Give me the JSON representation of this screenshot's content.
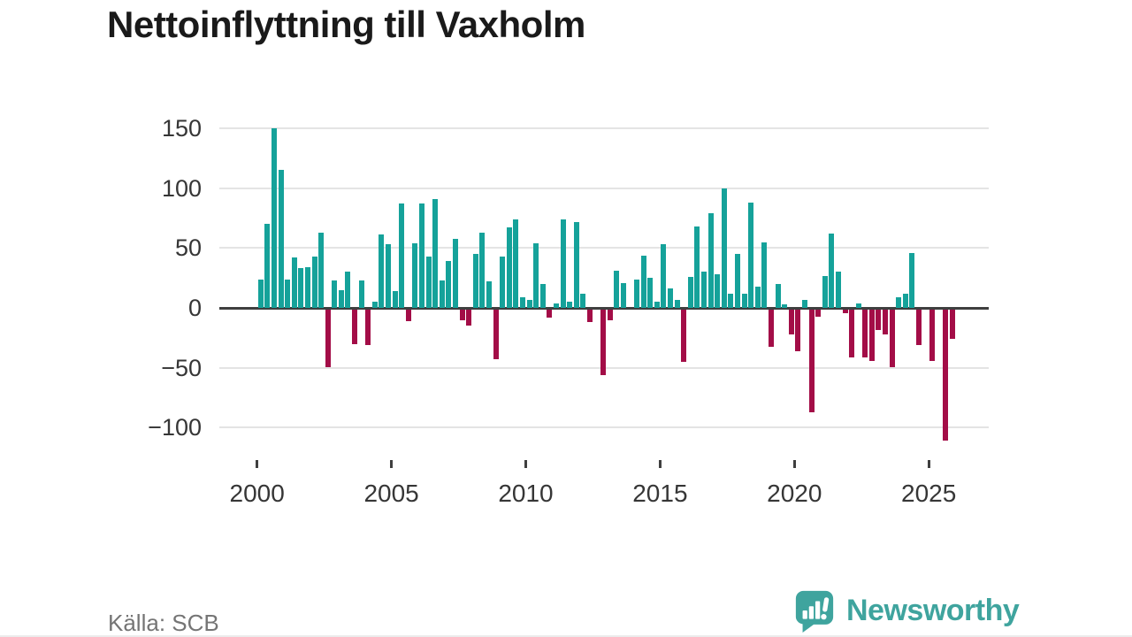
{
  "title": "Nettoinflyttning till Vaxholm",
  "source": {
    "label": "Källa: SCB"
  },
  "branding": {
    "name": "Newsworthy",
    "icon": "bar-chart-speech-bubble-icon"
  },
  "colors": {
    "positive_bar": "#15a29a",
    "negative_bar": "#a30d47",
    "axis_line": "#3f3f3f",
    "gridline": "#e4e4e4",
    "tick_label": "#363636",
    "title_text": "#1a1a1a",
    "source_text": "#757575",
    "brand_teal": "#3fa49e"
  },
  "chart_data": {
    "type": "bar",
    "title": "Nettoinflyttning till Vaxholm",
    "xlabel": "",
    "ylabel": "",
    "frequency": "quarterly",
    "start_year": 2000,
    "start_quarter": 1,
    "values": [
      24,
      70,
      150,
      115,
      24,
      42,
      33,
      34,
      43,
      63,
      -48,
      23,
      15,
      30,
      -29,
      23,
      -30,
      5,
      61,
      53,
      14,
      87,
      -10,
      54,
      87,
      43,
      91,
      23,
      39,
      58,
      -9,
      -14,
      45,
      63,
      22,
      -42,
      43,
      67,
      74,
      9,
      7,
      54,
      20,
      -7,
      4,
      74,
      5,
      72,
      12,
      -11,
      0,
      -55,
      -9,
      31,
      21,
      0,
      24,
      44,
      25,
      5,
      53,
      16,
      7,
      -44,
      26,
      68,
      30,
      79,
      28,
      100,
      12,
      45,
      12,
      88,
      18,
      55,
      -31,
      20,
      3,
      -21,
      -35,
      7,
      -86,
      -6,
      27,
      62,
      30,
      -3,
      -40,
      4,
      -40,
      -43,
      -17,
      -21,
      -48,
      9,
      12,
      46,
      -30,
      0,
      -43,
      0,
      -110,
      -25
    ],
    "y_tick_values": [
      150,
      100,
      50,
      0,
      -50,
      -100
    ],
    "y_tick_labels": [
      "150",
      "100",
      "50",
      "0",
      "−50",
      "−100"
    ],
    "x_tick_years": [
      2000,
      2005,
      2010,
      2015,
      2020,
      2025
    ],
    "x_tick_labels": [
      "2000",
      "2005",
      "2010",
      "2015",
      "2020",
      "2025"
    ],
    "ylim": [
      -115,
      155
    ],
    "grid": true,
    "legend": "none",
    "positive_color": "#15a29a",
    "negative_color": "#a30d47"
  }
}
